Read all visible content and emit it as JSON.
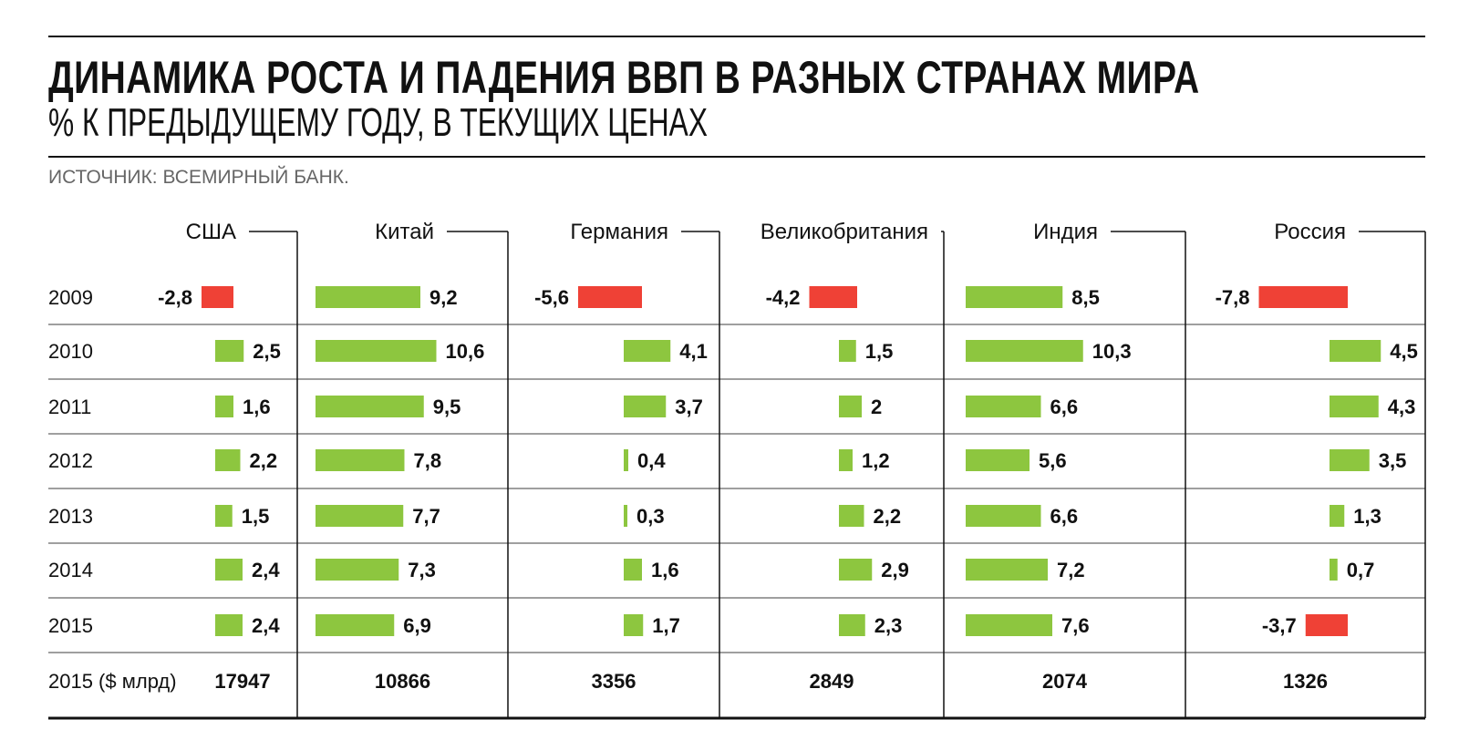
{
  "header": {
    "title": "ДИНАМИКА РОСТА И ПАДЕНИЯ ВВП В РАЗНЫХ СТРАНАХ МИРА",
    "subtitle": "% К ПРЕДЫДУЩЕМУ ГОДУ, В ТЕКУЩИХ ЦЕНАХ",
    "source": "ИСТОЧНИК: ВСЕМИРНЫЙ БАНК."
  },
  "colors": {
    "positive": "#8dc63f",
    "negative": "#ef4136",
    "text": "#111111"
  },
  "chart_data": {
    "type": "bar",
    "title": "ДИНАМИКА РОСТА И ПАДЕНИЯ ВВП В РАЗНЫХ СТРАНАХ МИРА",
    "ylabel": "% К ПРЕДЫДУЩЕМУ ГОДУ, В ТЕКУЩИХ ЦЕНАХ",
    "categories": [
      "2009",
      "2010",
      "2011",
      "2012",
      "2013",
      "2014",
      "2015"
    ],
    "totals_label": "2015 ($ млрд)",
    "series": [
      {
        "name": "США",
        "values": [
          -2.8,
          2.5,
          1.6,
          2.2,
          1.5,
          2.4,
          2.4
        ],
        "labels": [
          "-2,8",
          "2,5",
          "1,6",
          "2,2",
          "1,5",
          "2,4",
          "2,4"
        ],
        "total": "17947"
      },
      {
        "name": "Китай",
        "values": [
          9.2,
          10.6,
          9.5,
          7.8,
          7.7,
          7.3,
          6.9
        ],
        "labels": [
          "9,2",
          "10,6",
          "9,5",
          "7,8",
          "7,7",
          "7,3",
          "6,9"
        ],
        "total": "10866"
      },
      {
        "name": "Германия",
        "values": [
          -5.6,
          4.1,
          3.7,
          0.4,
          0.3,
          1.6,
          1.7
        ],
        "labels": [
          "-5,6",
          "4,1",
          "3,7",
          "0,4",
          "0,3",
          "1,6",
          "1,7"
        ],
        "total": "3356"
      },
      {
        "name": "Великобритания",
        "values": [
          -4.2,
          1.5,
          2,
          1.2,
          2.2,
          2.9,
          2.3
        ],
        "labels": [
          "-4,2",
          "1,5",
          "2",
          "1,2",
          "2,2",
          "2,9",
          "2,3"
        ],
        "total": "2849"
      },
      {
        "name": "Индия",
        "values": [
          8.5,
          10.3,
          6.6,
          5.6,
          6.6,
          7.2,
          7.6
        ],
        "labels": [
          "8,5",
          "10,3",
          "6,6",
          "5,6",
          "6,6",
          "7,2",
          "7,6"
        ],
        "total": "2074"
      },
      {
        "name": "Россия",
        "values": [
          -7.8,
          4.5,
          4.3,
          3.5,
          1.3,
          0.7,
          -3.7
        ],
        "labels": [
          "-7,8",
          "4,5",
          "4,3",
          "3,5",
          "1,3",
          "0,7",
          "-3,7"
        ],
        "total": "1326"
      }
    ]
  }
}
